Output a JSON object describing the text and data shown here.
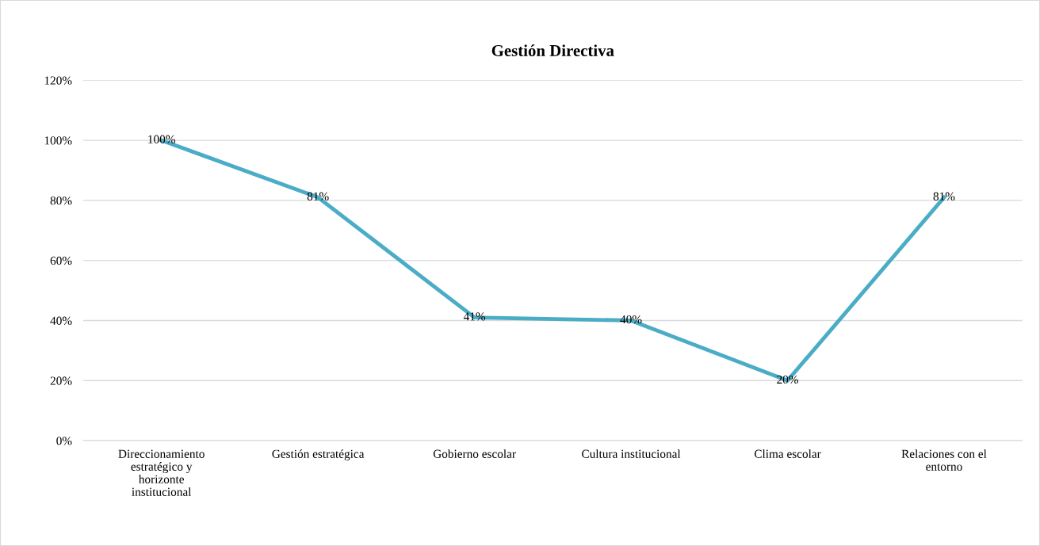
{
  "chart_data": {
    "type": "line",
    "title": "Gestión Directiva",
    "categories": [
      "Direccionamiento estratégico y horizonte institucional",
      "Gestión estratégica",
      "Gobierno escolar",
      "Cultura institucional",
      "Clima escolar",
      "Relaciones con el entorno"
    ],
    "series": [
      {
        "color": "#4bacc6",
        "values": [
          100,
          81,
          41,
          40,
          20,
          81
        ],
        "value_labels": [
          "100%",
          "81%",
          "41%",
          "40%",
          "20%",
          "81%"
        ]
      }
    ],
    "ylim": [
      0,
      120
    ],
    "yticks": [
      {
        "value": 0,
        "label": "0%"
      },
      {
        "value": 20,
        "label": "20%"
      },
      {
        "value": 40,
        "label": "40%"
      },
      {
        "value": 60,
        "label": "60%"
      },
      {
        "value": 80,
        "label": "80%"
      },
      {
        "value": 100,
        "label": "100%"
      },
      {
        "value": 120,
        "label": "120%"
      }
    ],
    "grid": "y",
    "marker": "none",
    "line_style": "solid"
  }
}
